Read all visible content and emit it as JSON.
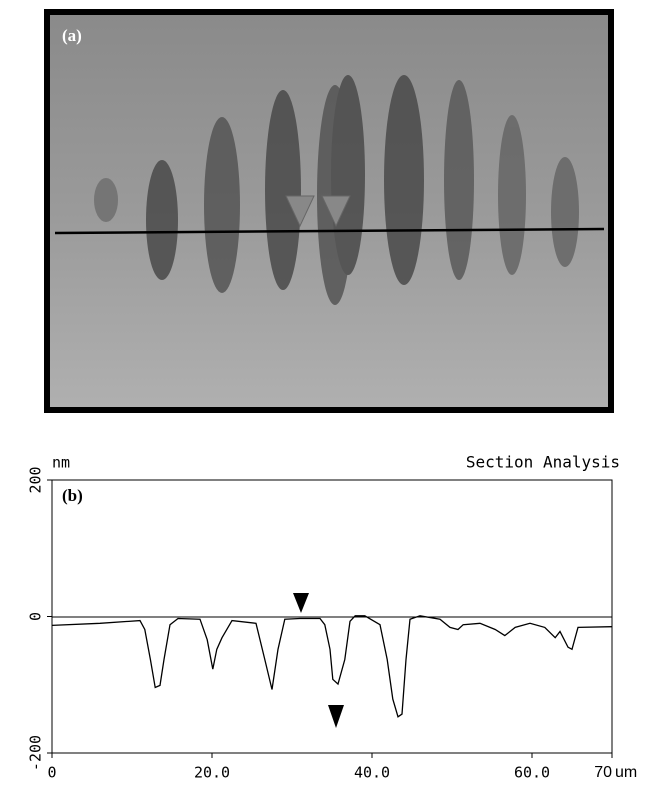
{
  "image_panel": {
    "label": "(a)"
  },
  "chart_data": {
    "type": "line",
    "title": "Section Analysis",
    "panel_label": "(b)",
    "y_label": "nm",
    "x_unit": "um",
    "x": [
      0,
      6,
      11,
      11.6,
      12.3,
      12.9,
      13.5,
      14,
      14.75,
      15.75,
      18.5,
      19.4,
      20.1,
      20.6,
      21.25,
      22.5,
      25.5,
      26.6,
      27.5,
      28.25,
      29.1,
      31,
      33.5,
      34.1,
      34.75,
      35.1,
      35.75,
      36.6,
      37.25,
      37.9,
      39.1,
      41,
      41.9,
      42.6,
      43.25,
      43.75,
      44.25,
      44.75,
      46,
      48.5,
      49.75,
      50.75,
      51.4,
      53.5,
      55.4,
      56.6,
      57.9,
      59.75,
      61.6,
      62.9,
      63.5,
      64.5,
      65,
      65.75,
      70
    ],
    "values": [
      -13,
      -10,
      -6,
      -19,
      -63,
      -104,
      -101,
      -63,
      -12,
      -3,
      -4,
      -34,
      -77,
      -48,
      -31,
      -6,
      -10,
      -63,
      -107,
      -48,
      -4,
      -3,
      -3,
      -12,
      -48,
      -92,
      -99,
      -63,
      -7,
      1,
      1,
      -12,
      -63,
      -121,
      -147,
      -143,
      -63,
      -4,
      1,
      -4,
      -16,
      -19,
      -12,
      -10,
      -19,
      -28,
      -16,
      -10,
      -16,
      -31,
      -22,
      -45,
      -48,
      -16,
      -15
    ],
    "color": "#000000",
    "xlim": [
      0,
      70
    ],
    "xticks": [
      0,
      {
        "value": 20,
        "label": "20.0"
      },
      {
        "value": 40,
        "label": "40.0"
      },
      {
        "value": 60,
        "label": "60.0"
      },
      70
    ],
    "ylim": [
      -200,
      200
    ],
    "yticks": [
      -200,
      0,
      200
    ]
  }
}
